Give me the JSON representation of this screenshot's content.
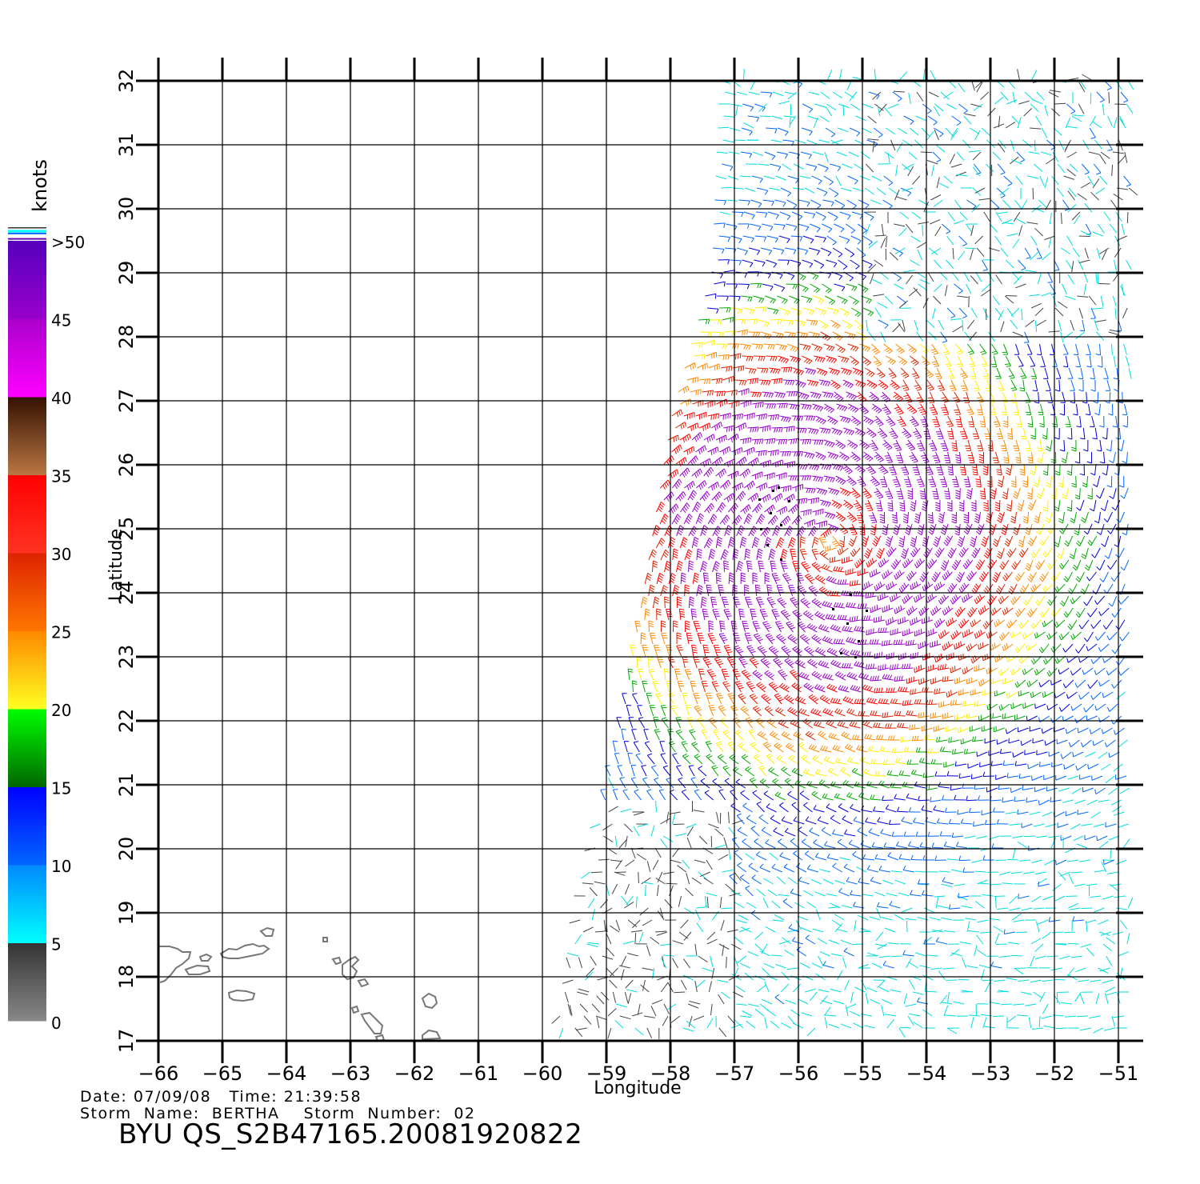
{
  "map": {
    "xlabel": "Longitude",
    "ylabel": "Latitude",
    "lon_ticks": [
      -66,
      -65,
      -64,
      -63,
      -62,
      -61,
      -60,
      -59,
      -58,
      -57,
      -56,
      -55,
      -54,
      -53,
      -52,
      -51
    ],
    "lat_ticks": [
      17,
      18,
      19,
      20,
      21,
      22,
      23,
      24,
      25,
      26,
      27,
      28,
      29,
      30,
      31,
      32
    ],
    "lon_range": [
      -66,
      -50.6
    ],
    "lat_range": [
      17,
      32
    ],
    "grid": true,
    "storm_center": {
      "lon": -55.5,
      "lat": 24.8
    }
  },
  "colorbar": {
    "title": "knots",
    "tick_labels": [
      "0",
      "5",
      "10",
      "15",
      "20",
      "25",
      "30",
      "35",
      "40",
      "45",
      ">50"
    ],
    "tick_values": [
      0,
      5,
      10,
      15,
      20,
      25,
      30,
      35,
      40,
      45,
      50
    ],
    "bands": [
      {
        "min": 0,
        "max": 5,
        "top": "#333333",
        "bottom": "#888888"
      },
      {
        "min": 5,
        "max": 10,
        "top": "#0088ff",
        "bottom": "#00ffff"
      },
      {
        "min": 10,
        "max": 15,
        "top": "#0000ff",
        "bottom": "#0066ff"
      },
      {
        "min": 15,
        "max": 20,
        "top": "#00ff00",
        "bottom": "#006600"
      },
      {
        "min": 20,
        "max": 25,
        "top": "#ff8800",
        "bottom": "#ffff22"
      },
      {
        "min": 25,
        "max": 30,
        "top": "#dd2200",
        "bottom": "#ff7700"
      },
      {
        "min": 30,
        "max": 35,
        "top": "#ff0000",
        "bottom": "#ff3322"
      },
      {
        "min": 35,
        "max": 40,
        "top": "#331100",
        "bottom": "#bb7744"
      },
      {
        "min": 40,
        "max": 45,
        "top": "#aa00cc",
        "bottom": "#ff00ff"
      },
      {
        "min": 45,
        "max": 50,
        "top": "#5500bb",
        "bottom": "#9900cc"
      }
    ]
  },
  "info": {
    "line1": "Date: 07/09/08   Time: 21:39:58",
    "line2": "Storm  Name:  BERTHA    Storm  Number:  02",
    "product": "BYU  QS_S2B47165.20081920822"
  },
  "colors": {
    "grid": "#000000",
    "coast": "#777777",
    "speed_levels": [
      "#444444",
      "#00dddd",
      "#0066ff",
      "#0000dd",
      "#00aa00",
      "#ffee00",
      "#ff8800",
      "#dd2200",
      "#ff0000",
      "#9900cc"
    ]
  }
}
